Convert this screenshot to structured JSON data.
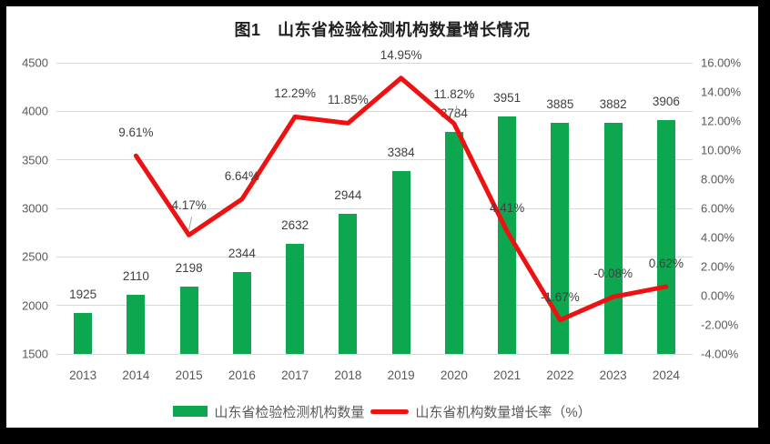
{
  "window": {
    "frame_color": "#000000",
    "panel_color": "#ffffff"
  },
  "chart_data": {
    "type": "bar+line",
    "title": "图1　山东省检验检测机构数量增长情况",
    "categories": [
      "2013",
      "2014",
      "2015",
      "2016",
      "2017",
      "2018",
      "2019",
      "2020",
      "2021",
      "2022",
      "2023",
      "2024"
    ],
    "series": [
      {
        "name": "山东省检验检测机构数量",
        "type": "bar",
        "color": "#0da750",
        "values": [
          1925,
          2110,
          2198,
          2344,
          2632,
          2944,
          3384,
          3784,
          3951,
          3885,
          3882,
          3906
        ],
        "labels": [
          "1925",
          "2110",
          "2198",
          "2344",
          "2632",
          "2944",
          "3384",
          "3784",
          "3951",
          "3885",
          "3882",
          "3906"
        ]
      },
      {
        "name": "山东省机构数量增长率（%）",
        "type": "line",
        "color": "#ee1111",
        "values": [
          null,
          9.61,
          4.17,
          6.64,
          12.29,
          11.85,
          14.95,
          11.82,
          4.41,
          -1.67,
          -0.08,
          0.62
        ],
        "labels": [
          null,
          "9.61%",
          "4.17%",
          "6.64%",
          "12.29%",
          "11.85%",
          "14.95%",
          "11.82%",
          "4.41%",
          "-1.67%",
          "-0.08%",
          "0.62%"
        ],
        "callout_indices": [
          2,
          7
        ]
      }
    ],
    "left_axis": {
      "min": 1500,
      "max": 4500,
      "step": 500,
      "ticks": [
        "4500",
        "4000",
        "3500",
        "3000",
        "2500",
        "2000",
        "1500"
      ]
    },
    "right_axis": {
      "min": -4,
      "max": 16,
      "step": 2,
      "ticks": [
        "16.00%",
        "14.00%",
        "12.00%",
        "10.00%",
        "8.00%",
        "6.00%",
        "4.00%",
        "2.00%",
        "0.00%",
        "-2.00%",
        "-4.00%"
      ]
    },
    "grid": true,
    "legend_position": "bottom"
  }
}
